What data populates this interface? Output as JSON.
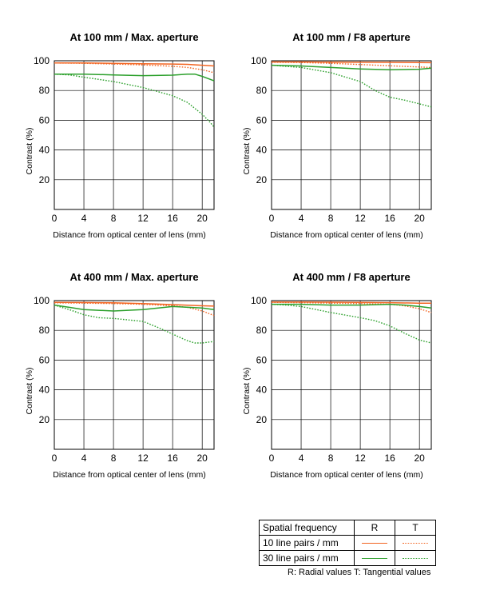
{
  "colors": {
    "lp10": "#f26522",
    "lp30": "#2ca02c",
    "frame": "#000000",
    "grid": "#000000"
  },
  "chart_data": [
    {
      "type": "line",
      "title": "At 100 mm / Max. aperture",
      "xlabel": "Distance from optical center of lens (mm)",
      "ylabel": "Contrast (%)",
      "xlim": [
        0,
        21.6
      ],
      "ylim": [
        0,
        100
      ],
      "xticks": [
        0,
        4,
        8,
        12,
        16,
        20
      ],
      "yticks": [
        20,
        40,
        60,
        80,
        100
      ],
      "grid": true,
      "series": [
        {
          "freq": "10",
          "style": "R",
          "x": [
            0,
            4,
            8,
            12,
            16,
            18,
            20,
            21.6
          ],
          "y": [
            98.5,
            98.5,
            98.3,
            98.0,
            97.8,
            97.6,
            97.0,
            96.5
          ]
        },
        {
          "freq": "10",
          "style": "T",
          "x": [
            0,
            4,
            8,
            12,
            16,
            18,
            20,
            21.6
          ],
          "y": [
            98.5,
            98.3,
            97.8,
            97.2,
            96.3,
            95.5,
            94.0,
            92.0
          ]
        },
        {
          "freq": "30",
          "style": "R",
          "x": [
            0,
            4,
            8,
            12,
            16,
            18,
            19,
            20,
            21.6
          ],
          "y": [
            91.0,
            91.0,
            90.5,
            90.0,
            90.3,
            91.0,
            91.0,
            89.5,
            86.5
          ]
        },
        {
          "freq": "30",
          "style": "T",
          "x": [
            0,
            2,
            4,
            8,
            12,
            16,
            18,
            20,
            21,
            21.6
          ],
          "y": [
            91.0,
            90.5,
            89.0,
            86.0,
            82.0,
            76.5,
            72.0,
            64.0,
            59.0,
            55.5
          ]
        }
      ]
    },
    {
      "type": "line",
      "title": "At 100 mm / F8 aperture",
      "xlabel": "Distance from optical center of lens (mm)",
      "ylabel": "Contrast (%)",
      "xlim": [
        0,
        21.6
      ],
      "ylim": [
        0,
        100
      ],
      "xticks": [
        0,
        4,
        8,
        12,
        16,
        20
      ],
      "yticks": [
        20,
        40,
        60,
        80,
        100
      ],
      "grid": true,
      "series": [
        {
          "freq": "10",
          "style": "R",
          "x": [
            0,
            4,
            8,
            12,
            16,
            20,
            21.6
          ],
          "y": [
            99.2,
            99.2,
            99.1,
            99.0,
            98.9,
            98.8,
            98.7
          ]
        },
        {
          "freq": "10",
          "style": "T",
          "x": [
            0,
            4,
            8,
            12,
            16,
            20,
            21.6
          ],
          "y": [
            99.0,
            98.8,
            98.3,
            97.5,
            96.6,
            95.8,
            95.5
          ]
        },
        {
          "freq": "30",
          "style": "R",
          "x": [
            0,
            4,
            8,
            12,
            16,
            20,
            21.6
          ],
          "y": [
            97.0,
            96.5,
            95.5,
            94.5,
            94.0,
            94.3,
            95.0
          ]
        },
        {
          "freq": "30",
          "style": "T",
          "x": [
            0,
            4,
            8,
            12,
            14,
            16,
            18,
            20,
            21.6
          ],
          "y": [
            97.0,
            95.5,
            92.0,
            86.0,
            80.0,
            75.5,
            73.5,
            71.0,
            69.0
          ]
        }
      ]
    },
    {
      "type": "line",
      "title": "At 400 mm / Max. aperture",
      "xlabel": "Distance from optical center of lens (mm)",
      "ylabel": "Contrast (%)",
      "xlim": [
        0,
        21.6
      ],
      "ylim": [
        0,
        100
      ],
      "xticks": [
        0,
        4,
        8,
        12,
        16,
        20
      ],
      "yticks": [
        20,
        40,
        60,
        80,
        100
      ],
      "grid": true,
      "series": [
        {
          "freq": "10",
          "style": "R",
          "x": [
            0,
            4,
            8,
            12,
            16,
            20,
            21.6
          ],
          "y": [
            98.8,
            98.7,
            98.5,
            98.0,
            97.3,
            96.5,
            96.3
          ]
        },
        {
          "freq": "10",
          "style": "T",
          "x": [
            0,
            4,
            8,
            12,
            16,
            18,
            20,
            21.6
          ],
          "y": [
            98.5,
            98.3,
            98.0,
            97.5,
            96.5,
            95.5,
            93.0,
            90.0
          ]
        },
        {
          "freq": "30",
          "style": "R",
          "x": [
            0,
            2,
            4,
            8,
            12,
            16,
            20,
            21.6
          ],
          "y": [
            97.0,
            95.5,
            94.0,
            93.0,
            94.0,
            96.0,
            95.0,
            94.0
          ]
        },
        {
          "freq": "30",
          "style": "T",
          "x": [
            0,
            2,
            4,
            6,
            8,
            12,
            14,
            16,
            18,
            19,
            20,
            21.6
          ],
          "y": [
            97.0,
            94.0,
            90.5,
            88.5,
            88.0,
            86.0,
            82.0,
            77.5,
            73.0,
            71.5,
            71.5,
            72.5
          ]
        }
      ]
    },
    {
      "type": "line",
      "title": "At 400 mm / F8 aperture",
      "xlabel": "Distance from optical center of lens (mm)",
      "ylabel": "Contrast (%)",
      "xlim": [
        0,
        21.6
      ],
      "ylim": [
        0,
        100
      ],
      "xticks": [
        0,
        4,
        8,
        12,
        16,
        20
      ],
      "yticks": [
        20,
        40,
        60,
        80,
        100
      ],
      "grid": true,
      "series": [
        {
          "freq": "10",
          "style": "R",
          "x": [
            0,
            4,
            8,
            12,
            16,
            20,
            21.6
          ],
          "y": [
            99.0,
            99.0,
            98.9,
            98.8,
            98.6,
            98.3,
            98.2
          ]
        },
        {
          "freq": "10",
          "style": "T",
          "x": [
            0,
            4,
            8,
            12,
            16,
            18,
            20,
            21.6
          ],
          "y": [
            98.8,
            98.6,
            98.3,
            98.0,
            97.5,
            96.5,
            94.5,
            92.0
          ]
        },
        {
          "freq": "30",
          "style": "R",
          "x": [
            0,
            4,
            8,
            12,
            16,
            18,
            20,
            21.6
          ],
          "y": [
            97.5,
            97.5,
            97.0,
            97.0,
            97.5,
            97.0,
            96.0,
            95.0
          ]
        },
        {
          "freq": "30",
          "style": "T",
          "x": [
            0,
            2,
            4,
            8,
            12,
            14,
            16,
            18,
            20,
            21.6
          ],
          "y": [
            97.5,
            97.0,
            96.0,
            92.0,
            88.5,
            86.5,
            83.0,
            78.0,
            73.5,
            71.5
          ]
        }
      ]
    }
  ],
  "legend": {
    "header": "Spatial frequency",
    "col_r": "R",
    "col_t": "T",
    "row_10": "10 line pairs / mm",
    "row_30": "30 line pairs / mm",
    "note": "R: Radial values  T: Tangential values"
  }
}
